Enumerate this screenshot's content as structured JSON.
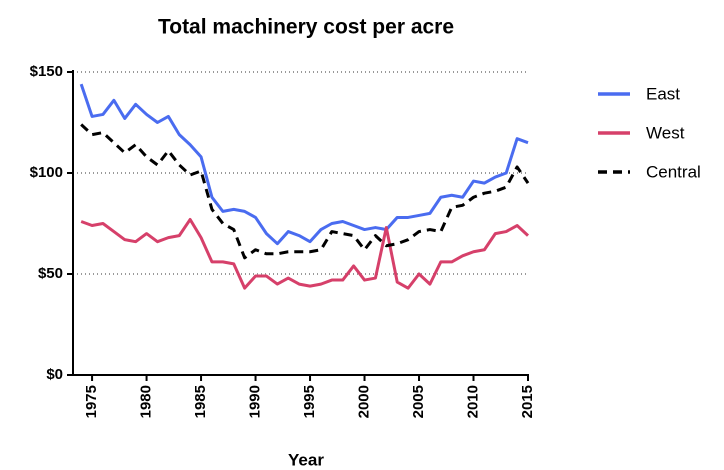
{
  "chart_data": {
    "type": "line",
    "title": "Total machinery cost per acre",
    "x_label": "Year",
    "x": [
      1974,
      1975,
      1976,
      1977,
      1978,
      1979,
      1980,
      1981,
      1982,
      1983,
      1984,
      1985,
      1986,
      1987,
      1988,
      1989,
      1990,
      1991,
      1992,
      1993,
      1994,
      1995,
      1996,
      1997,
      1998,
      1999,
      2000,
      2001,
      2002,
      2003,
      2004,
      2005,
      2006,
      2007,
      2008,
      2009,
      2010,
      2011,
      2012,
      2013,
      2014,
      2015
    ],
    "series": [
      {
        "name": "East",
        "color": "#4a6cf0",
        "dashed": false,
        "values": [
          144,
          128,
          129,
          136,
          127,
          134,
          129,
          125,
          128,
          119,
          114,
          108,
          88,
          81,
          82,
          81,
          78,
          70,
          65,
          71,
          69,
          66,
          72,
          75,
          76,
          74,
          72,
          73,
          72,
          78,
          78,
          79,
          80,
          88,
          89,
          88,
          96,
          95,
          98,
          100,
          117,
          115
        ]
      },
      {
        "name": "West",
        "color": "#d6406a",
        "dashed": false,
        "values": [
          76,
          74,
          75,
          71,
          67,
          66,
          70,
          66,
          68,
          69,
          77,
          68,
          56,
          56,
          55,
          43,
          49,
          49,
          45,
          48,
          45,
          44,
          45,
          47,
          47,
          54,
          47,
          48,
          73,
          46,
          43,
          50,
          45,
          56,
          56,
          59,
          61,
          62,
          70,
          71,
          74,
          69
        ]
      },
      {
        "name": "Central",
        "color": "#000000",
        "dashed": true,
        "values": [
          124,
          119,
          120,
          115,
          110,
          114,
          108,
          104,
          111,
          104,
          99,
          101,
          82,
          75,
          72,
          58,
          62,
          60,
          60,
          61,
          61,
          61,
          62,
          71,
          70,
          69,
          62,
          69,
          64,
          65,
          67,
          71,
          72,
          71,
          83,
          84,
          88,
          90,
          91,
          93,
          103,
          95
        ]
      }
    ],
    "xlim": [
      1973.25,
      2015
    ],
    "xticks": [
      1975,
      1980,
      1985,
      1990,
      1995,
      2000,
      2005,
      2010,
      2015
    ],
    "ylim": [
      0,
      150
    ],
    "yticks": [
      {
        "value": 0,
        "label": "$0"
      },
      {
        "value": 50,
        "label": "$50"
      },
      {
        "value": 100,
        "label": "$100"
      },
      {
        "value": 150,
        "label": "$150"
      }
    ],
    "grid": true,
    "legend": "right"
  }
}
